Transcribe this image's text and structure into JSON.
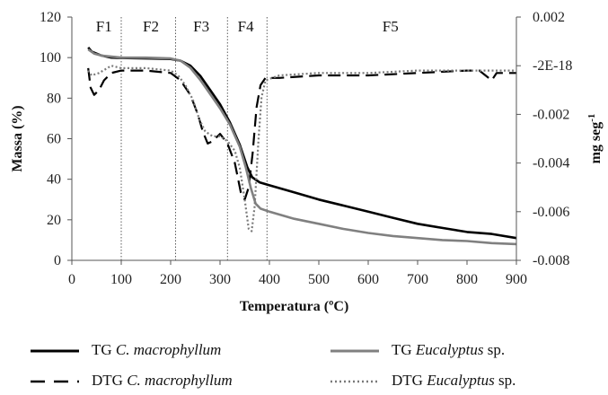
{
  "chart_data": {
    "type": "line",
    "xlabel": "Temperatura (ºC)",
    "ylabel_left": "Massa (%)",
    "ylabel_right_base": "mg  seg",
    "ylabel_right_sup": "-1",
    "xlim": [
      0,
      900
    ],
    "ylim_left": [
      0,
      120
    ],
    "ylim_right": [
      -0.008,
      0.002
    ],
    "x_ticks": [
      "0",
      "100",
      "200",
      "300",
      "400",
      "500",
      "600",
      "700",
      "800",
      "900"
    ],
    "y_left_ticks": [
      "0",
      "20",
      "40",
      "60",
      "80",
      "100",
      "120"
    ],
    "y_right_ticks": [
      "0.002",
      "-2E-18",
      "-0.002",
      "-0.004",
      "-0.006",
      "-0.008"
    ],
    "zones": [
      {
        "label": "F1",
        "x_center": 65
      },
      {
        "label": "F2",
        "x_center": 160
      },
      {
        "label": "F3",
        "x_center": 262
      },
      {
        "label": "F4",
        "x_center": 352
      },
      {
        "label": "F5",
        "x_center": 645
      }
    ],
    "zone_boundaries": [
      100,
      210,
      315,
      395
    ],
    "series": [
      {
        "name_prefix": "TG",
        "name_species": "C. macrophyllum",
        "axis": "left",
        "color": "#000000",
        "dash": "solid",
        "points": [
          [
            33,
            105
          ],
          [
            40,
            103
          ],
          [
            60,
            101
          ],
          [
            80,
            100
          ],
          [
            100,
            99.8
          ],
          [
            150,
            99.6
          ],
          [
            200,
            99.3
          ],
          [
            220,
            98.5
          ],
          [
            240,
            96
          ],
          [
            260,
            91
          ],
          [
            280,
            84
          ],
          [
            300,
            77
          ],
          [
            320,
            68
          ],
          [
            340,
            57
          ],
          [
            355,
            46
          ],
          [
            365,
            41
          ],
          [
            380,
            38.5
          ],
          [
            400,
            37
          ],
          [
            450,
            33.5
          ],
          [
            500,
            30
          ],
          [
            550,
            27
          ],
          [
            600,
            24
          ],
          [
            650,
            21
          ],
          [
            700,
            18
          ],
          [
            750,
            16
          ],
          [
            800,
            14
          ],
          [
            850,
            13
          ],
          [
            900,
            11
          ]
        ]
      },
      {
        "name_prefix": "DTG",
        "name_species": "C. macrophyllum",
        "axis": "right",
        "color": "#000000",
        "dash": "long",
        "points": [
          [
            33,
            -0.0001
          ],
          [
            38,
            -0.0009
          ],
          [
            45,
            -0.0012
          ],
          [
            55,
            -0.001
          ],
          [
            65,
            -0.0006
          ],
          [
            80,
            -0.0003
          ],
          [
            100,
            -0.0002
          ],
          [
            150,
            -0.0002
          ],
          [
            200,
            -0.0003
          ],
          [
            220,
            -0.0006
          ],
          [
            240,
            -0.0012
          ],
          [
            255,
            -0.002
          ],
          [
            265,
            -0.0027
          ],
          [
            275,
            -0.0032
          ],
          [
            285,
            -0.0031
          ],
          [
            300,
            -0.0028
          ],
          [
            315,
            -0.0032
          ],
          [
            330,
            -0.004
          ],
          [
            342,
            -0.0052
          ],
          [
            350,
            -0.0055
          ],
          [
            358,
            -0.005
          ],
          [
            366,
            -0.0036
          ],
          [
            374,
            -0.0017
          ],
          [
            382,
            -0.0008
          ],
          [
            392,
            -0.0005
          ],
          [
            420,
            -0.0005
          ],
          [
            500,
            -0.0004
          ],
          [
            600,
            -0.0004
          ],
          [
            700,
            -0.0003
          ],
          [
            800,
            -0.0002
          ],
          [
            825,
            -0.0002
          ],
          [
            850,
            -0.0006
          ],
          [
            860,
            -0.0003
          ],
          [
            900,
            -0.0003
          ]
        ]
      },
      {
        "name_prefix": "TG",
        "name_species": "Eucalyptus",
        "name_suffix": " sp.",
        "axis": "left",
        "color": "#808080",
        "dash": "solid",
        "points": [
          [
            33,
            104
          ],
          [
            45,
            102
          ],
          [
            60,
            101
          ],
          [
            100,
            100
          ],
          [
            150,
            100
          ],
          [
            200,
            99.6
          ],
          [
            220,
            98.5
          ],
          [
            240,
            95
          ],
          [
            260,
            89
          ],
          [
            280,
            82
          ],
          [
            300,
            75
          ],
          [
            320,
            67
          ],
          [
            340,
            56
          ],
          [
            352,
            46
          ],
          [
            362,
            36
          ],
          [
            372,
            28
          ],
          [
            382,
            25.5
          ],
          [
            400,
            24
          ],
          [
            450,
            20.5
          ],
          [
            500,
            18
          ],
          [
            550,
            15.5
          ],
          [
            600,
            13.5
          ],
          [
            650,
            12
          ],
          [
            700,
            11
          ],
          [
            750,
            10
          ],
          [
            800,
            9.5
          ],
          [
            850,
            8.5
          ],
          [
            900,
            8
          ]
        ]
      },
      {
        "name_prefix": "DTG",
        "name_species": "Eucalyptus",
        "name_suffix": " sp.",
        "axis": "right",
        "color": "#7a7a7a",
        "dash": "dotted",
        "points": [
          [
            33,
            -0.0002
          ],
          [
            40,
            -0.0004
          ],
          [
            55,
            -0.0003
          ],
          [
            80,
            0.0
          ],
          [
            100,
            -0.0001
          ],
          [
            150,
            -0.0001
          ],
          [
            200,
            -0.0002
          ],
          [
            215,
            -0.0004
          ],
          [
            230,
            -0.0008
          ],
          [
            245,
            -0.0014
          ],
          [
            258,
            -0.0022
          ],
          [
            270,
            -0.0027
          ],
          [
            285,
            -0.0029
          ],
          [
            300,
            -0.0029
          ],
          [
            315,
            -0.0031
          ],
          [
            330,
            -0.0035
          ],
          [
            340,
            -0.0042
          ],
          [
            350,
            -0.0055
          ],
          [
            358,
            -0.0067
          ],
          [
            364,
            -0.0068
          ],
          [
            370,
            -0.0058
          ],
          [
            378,
            -0.003
          ],
          [
            384,
            -0.0013
          ],
          [
            392,
            -0.0006
          ],
          [
            420,
            -0.0004
          ],
          [
            500,
            -0.0003
          ],
          [
            600,
            -0.0003
          ],
          [
            700,
            -0.0002
          ],
          [
            800,
            -0.0002
          ],
          [
            900,
            -0.0002
          ]
        ]
      }
    ]
  }
}
